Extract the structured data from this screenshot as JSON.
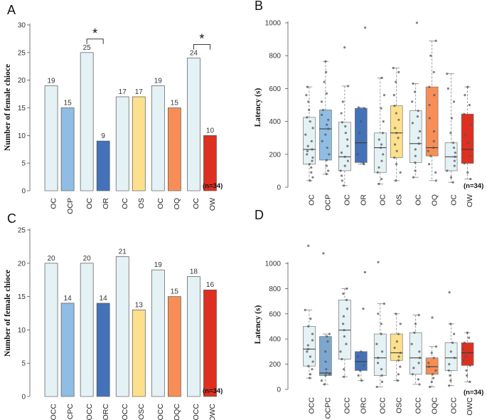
{
  "chart_data": [
    {
      "panel": "A",
      "type": "bar",
      "ylabel": "Number of female chioce",
      "ylim": [
        0,
        30
      ],
      "yticks": [
        0,
        5,
        10,
        15,
        20,
        25,
        30
      ],
      "categories": [
        "OC",
        "OCP",
        "OC",
        "OR",
        "OC",
        "OS",
        "OC",
        "OQ",
        "OC",
        "OW"
      ],
      "values": [
        19,
        15,
        25,
        9,
        17,
        17,
        19,
        15,
        24,
        10
      ],
      "colors": [
        "#e4f1f5",
        "#8fbde3",
        "#e4f1f5",
        "#4472b8",
        "#e4f1f5",
        "#fde08c",
        "#e4f1f5",
        "#f78e57",
        "#e4f1f5",
        "#dd3021"
      ],
      "significance": [
        {
          "pair": 1,
          "label": "*"
        },
        {
          "pair": 4,
          "label": "*"
        }
      ],
      "n_label": "(n=34)"
    },
    {
      "panel": "B",
      "type": "box",
      "ylabel": "Latency (s)",
      "ylim": [
        0,
        1000
      ],
      "yticks": [
        0,
        200,
        400,
        600,
        800,
        1000
      ],
      "categories": [
        "OC",
        "OCP",
        "OC",
        "OR",
        "OC",
        "OS",
        "OC",
        "OQ",
        "OC",
        "OW"
      ],
      "colors": [
        "#e4f1f5",
        "#8fbde3",
        "#e4f1f5",
        "#4472b8",
        "#e4f1f5",
        "#fde08c",
        "#e4f1f5",
        "#f78e57",
        "#e4f1f5",
        "#dd3021"
      ],
      "boxes": [
        {
          "min": 40,
          "q1": 140,
          "median": 230,
          "q3": 425,
          "max": 610,
          "points": [
            40,
            60,
            90,
            120,
            140,
            160,
            180,
            200,
            220,
            230,
            250,
            280,
            320,
            360,
            400,
            425,
            470,
            520,
            560,
            610
          ]
        },
        {
          "min": 80,
          "q1": 165,
          "median": 355,
          "q3": 470,
          "max": 765,
          "points": [
            80,
            100,
            130,
            165,
            200,
            240,
            280,
            320,
            355,
            380,
            410,
            440,
            470,
            520,
            570,
            640,
            700,
            765
          ]
        },
        {
          "min": 10,
          "q1": 100,
          "median": 185,
          "q3": 395,
          "max": 615,
          "points": [
            10,
            40,
            70,
            100,
            130,
            160,
            185,
            210,
            250,
            290,
            330,
            370,
            395,
            450,
            520,
            615,
            850
          ]
        },
        {
          "min": 140,
          "q1": 150,
          "median": 270,
          "q3": 480,
          "max": 485,
          "points": [
            140,
            150,
            200,
            270,
            330,
            400,
            480,
            485,
            970
          ]
        },
        {
          "min": 20,
          "q1": 90,
          "median": 240,
          "q3": 330,
          "max": 665,
          "points": [
            20,
            50,
            90,
            120,
            160,
            200,
            240,
            260,
            290,
            330,
            400,
            480,
            560,
            665
          ]
        },
        {
          "min": 40,
          "q1": 180,
          "median": 330,
          "q3": 495,
          "max": 725,
          "points": [
            40,
            90,
            140,
            180,
            220,
            260,
            300,
            330,
            360,
            410,
            450,
            495,
            560,
            640,
            700,
            725
          ]
        },
        {
          "min": 60,
          "q1": 150,
          "median": 265,
          "q3": 465,
          "max": 630,
          "points": [
            60,
            100,
            150,
            190,
            230,
            265,
            300,
            340,
            390,
            430,
            465,
            520,
            580,
            630,
            1000
          ]
        },
        {
          "min": 40,
          "q1": 190,
          "median": 240,
          "q3": 610,
          "max": 890,
          "points": [
            40,
            90,
            140,
            190,
            220,
            240,
            280,
            340,
            420,
            500,
            560,
            610,
            700,
            800,
            890
          ]
        },
        {
          "min": 30,
          "q1": 100,
          "median": 185,
          "q3": 270,
          "max": 690,
          "points": [
            30,
            60,
            100,
            130,
            160,
            185,
            210,
            240,
            270,
            330,
            420,
            520,
            600,
            690
          ]
        },
        {
          "min": 50,
          "q1": 145,
          "median": 230,
          "q3": 445,
          "max": 610,
          "points": [
            50,
            90,
            145,
            190,
            230,
            270,
            320,
            380,
            445,
            500,
            560,
            610
          ]
        }
      ],
      "n_label": "(n=34)"
    },
    {
      "panel": "C",
      "type": "bar",
      "ylabel": "Number of female chioce",
      "ylim": [
        0,
        25
      ],
      "yticks": [
        0,
        5,
        10,
        15,
        20,
        25
      ],
      "categories": [
        "OCC",
        "OCPC",
        "OCC",
        "ORC",
        "OCC",
        "OSC",
        "OCC",
        "OQC",
        "OCC",
        "OWC"
      ],
      "values": [
        20,
        14,
        20,
        14,
        21,
        13,
        19,
        15,
        18,
        16
      ],
      "colors": [
        "#e4f1f5",
        "#8fbde3",
        "#e4f1f5",
        "#4472b8",
        "#e4f1f5",
        "#fde08c",
        "#e4f1f5",
        "#f78e57",
        "#e4f1f5",
        "#dd3021"
      ],
      "n_label": "(n=34)"
    },
    {
      "panel": "D",
      "type": "box",
      "ylabel": "Latency (s)",
      "ylim": [
        0,
        1000
      ],
      "yticks": [
        0,
        200,
        400,
        600,
        800,
        1000
      ],
      "categories": [
        "OCC",
        "OCPC",
        "OCC",
        "ORC",
        "OCC",
        "OSC",
        "OCC",
        "OQC",
        "OCC",
        "OWC"
      ],
      "colors": [
        "#e4f1f5",
        "#7ea7cf",
        "#e4f1f5",
        "#4472b8",
        "#e4f1f5",
        "#fde08c",
        "#e4f1f5",
        "#f78e57",
        "#e4f1f5",
        "#dd3021"
      ],
      "boxes": [
        {
          "min": 90,
          "q1": 185,
          "median": 320,
          "q3": 500,
          "max": 630,
          "points": [
            90,
            120,
            160,
            185,
            220,
            260,
            300,
            320,
            350,
            390,
            440,
            500,
            560,
            630,
            1140
          ]
        },
        {
          "min": 40,
          "q1": 110,
          "median": 130,
          "q3": 420,
          "max": 440,
          "points": [
            40,
            70,
            110,
            120,
            130,
            160,
            220,
            300,
            380,
            420,
            440,
            1080
          ]
        },
        {
          "min": 100,
          "q1": 240,
          "median": 470,
          "q3": 710,
          "max": 800,
          "points": [
            100,
            160,
            240,
            300,
            360,
            420,
            470,
            520,
            580,
            640,
            710,
            760,
            800
          ]
        },
        {
          "min": 70,
          "q1": 150,
          "median": 220,
          "q3": 300,
          "max": 300,
          "points": [
            70,
            110,
            150,
            190,
            220,
            260,
            300,
            640,
            930
          ]
        },
        {
          "min": 20,
          "q1": 110,
          "median": 250,
          "q3": 440,
          "max": 680,
          "points": [
            20,
            60,
            110,
            160,
            210,
            250,
            300,
            360,
            440,
            520,
            600,
            680,
            1010
          ]
        },
        {
          "min": 70,
          "q1": 230,
          "median": 290,
          "q3": 440,
          "max": 600,
          "points": [
            70,
            120,
            180,
            230,
            260,
            290,
            330,
            380,
            440,
            520,
            600
          ]
        },
        {
          "min": 40,
          "q1": 120,
          "median": 250,
          "q3": 450,
          "max": 590,
          "points": [
            40,
            80,
            120,
            170,
            210,
            250,
            300,
            360,
            450,
            520,
            590
          ]
        },
        {
          "min": 20,
          "q1": 120,
          "median": 180,
          "q3": 250,
          "max": 340,
          "points": [
            20,
            60,
            90,
            120,
            150,
            180,
            210,
            250,
            290,
            340,
            570
          ]
        },
        {
          "min": 30,
          "q1": 150,
          "median": 250,
          "q3": 370,
          "max": 520,
          "points": [
            30,
            70,
            110,
            150,
            200,
            250,
            300,
            370,
            440,
            520,
            770
          ]
        },
        {
          "min": 60,
          "q1": 190,
          "median": 290,
          "q3": 370,
          "max": 450,
          "points": [
            60,
            110,
            150,
            190,
            230,
            260,
            290,
            320,
            370,
            410,
            450
          ]
        }
      ],
      "n_label": "(n=34)"
    }
  ]
}
